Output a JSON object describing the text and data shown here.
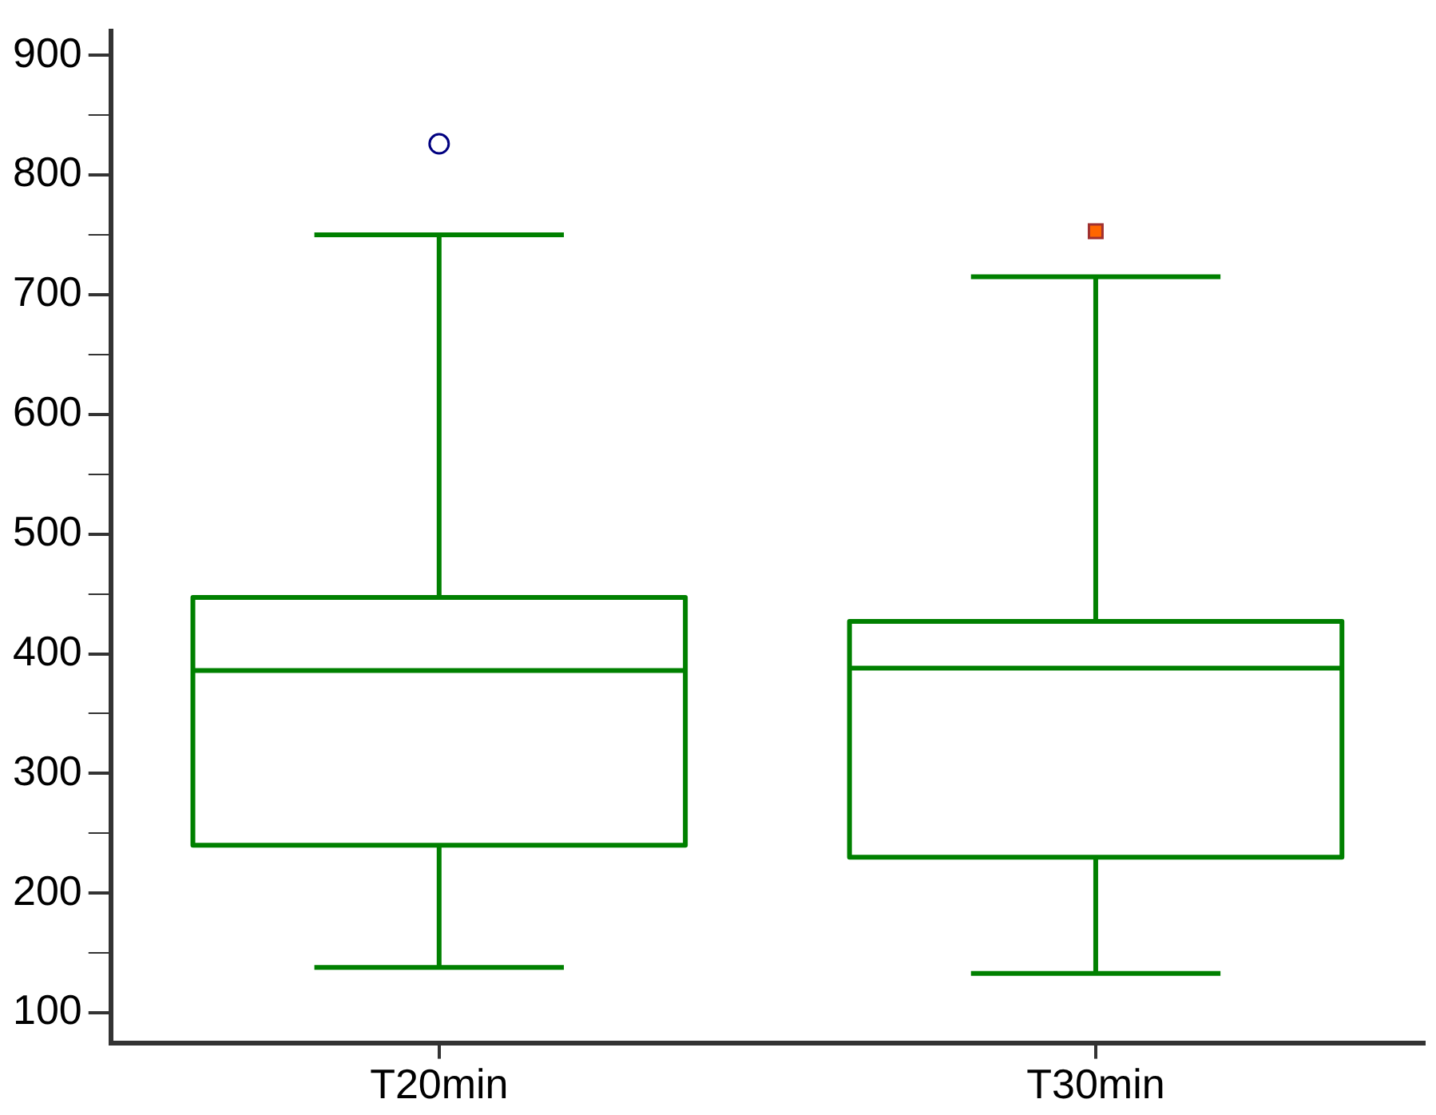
{
  "chart_data": {
    "type": "box",
    "categories": [
      "T20min",
      "T30min"
    ],
    "series": [
      {
        "type": "box",
        "color": "#008000",
        "boxes": [
          {
            "low": 138,
            "q1": 240,
            "median": 386,
            "q3": 447,
            "high": 750
          },
          {
            "low": 133,
            "q1": 230,
            "median": 388,
            "q3": 427,
            "high": 715
          }
        ]
      },
      {
        "type": "scatter",
        "x": [
          "T20min"
        ],
        "values": [
          826
        ],
        "color": "#000080",
        "marker": "circle"
      },
      {
        "type": "scatter",
        "x": [
          "T30min"
        ],
        "values": [
          753
        ],
        "color": "#ff6600",
        "marker": "square"
      }
    ],
    "ylim": [
      75,
      920
    ],
    "yticks": [
      100,
      {
        "value": 150,
        "label": null
      },
      200,
      {
        "value": 250,
        "label": null
      },
      300,
      {
        "value": 350,
        "label": null
      },
      400,
      {
        "value": 450,
        "label": null
      },
      500,
      {
        "value": 550,
        "label": null
      },
      600,
      {
        "value": 650,
        "label": null
      },
      700,
      {
        "value": 750,
        "label": null
      },
      800,
      {
        "value": 850,
        "label": null
      },
      900
    ],
    "grid": false,
    "legend": false
  }
}
